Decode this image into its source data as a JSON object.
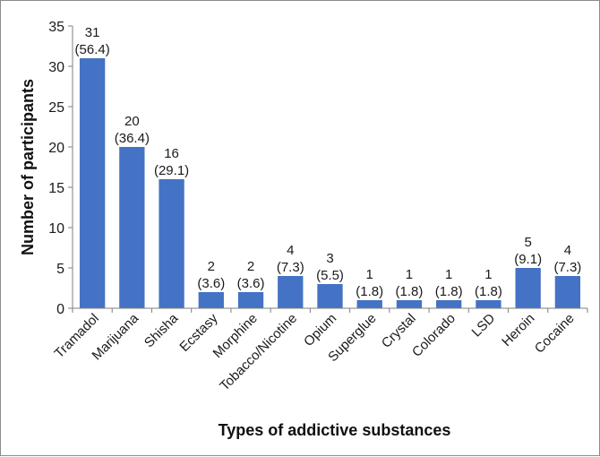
{
  "chart_data": {
    "type": "bar",
    "title": "",
    "xlabel": "Types of addictive substances",
    "ylabel": "Number of participants",
    "ylim": [
      0,
      35
    ],
    "yticks": [
      0,
      5,
      10,
      15,
      20,
      25,
      30,
      35
    ],
    "grid": false,
    "legend": "none",
    "bar_color": "#4472c4",
    "categories": [
      "Tramadol",
      "Marijuana",
      "Shisha",
      "Ecstasy",
      "Morphine",
      "Tobacco/Nicotine",
      "Opium",
      "Superglue",
      "Crystal",
      "Colorado",
      "LSD",
      "Heroin",
      "Cocaine"
    ],
    "values": [
      31,
      20,
      16,
      2,
      2,
      4,
      3,
      1,
      1,
      1,
      1,
      5,
      4
    ],
    "percent_labels": [
      "(56.4)",
      "(36.4)",
      "(29.1)",
      "(3.6)",
      "(3.6)",
      "(7.3)",
      "(5.5)",
      "(1.8)",
      "(1.8)",
      "(1.8)",
      "(1.8)",
      "(9.1)",
      "(7.3)"
    ]
  }
}
